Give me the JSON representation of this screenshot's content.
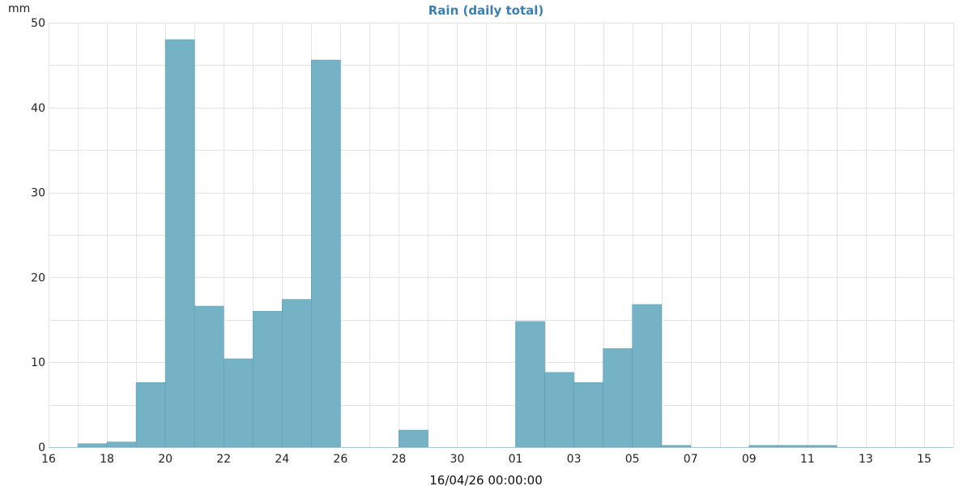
{
  "chart_data": {
    "type": "bar",
    "title": "Rain (daily total)",
    "ylabel": "mm",
    "xlabel": "16/04/26 00:00:00",
    "ylim": [
      0,
      50
    ],
    "yticks": [
      "0",
      "10",
      "20",
      "30",
      "40",
      "50"
    ],
    "xlim": [
      "2026-03-16",
      "2026-04-16"
    ],
    "x_tick_labels": [
      "16",
      "18",
      "20",
      "22",
      "24",
      "26",
      "28",
      "30",
      "01",
      "03",
      "05",
      "07",
      "09",
      "11",
      "13",
      "15"
    ],
    "x_ticks": [
      "2026-03-16",
      "2026-03-18",
      "2026-03-20",
      "2026-03-22",
      "2026-03-24",
      "2026-03-26",
      "2026-03-28",
      "2026-03-30",
      "2026-04-01",
      "2026-04-03",
      "2026-04-05",
      "2026-04-07",
      "2026-04-09",
      "2026-04-11",
      "2026-04-13",
      "2026-04-15"
    ],
    "grid": true,
    "bar_color": "#74b3c5",
    "title_color": "#3a7fb0",
    "series": [
      {
        "dates": [
          "2026-03-17",
          "2026-03-18",
          "2026-03-19",
          "2026-03-20",
          "2026-03-21",
          "2026-03-22",
          "2026-03-23",
          "2026-03-24",
          "2026-03-25",
          "2026-03-28",
          "2026-04-01",
          "2026-04-02",
          "2026-04-03",
          "2026-04-04",
          "2026-04-05",
          "2026-04-06",
          "2026-04-09",
          "2026-04-10",
          "2026-04-11"
        ],
        "values": [
          0.4,
          0.6,
          7.6,
          48.0,
          16.6,
          10.4,
          16.0,
          17.4,
          45.6,
          2.0,
          14.8,
          8.8,
          7.6,
          11.6,
          16.8,
          0.2,
          0.2,
          0.2,
          0.2
        ]
      }
    ]
  }
}
